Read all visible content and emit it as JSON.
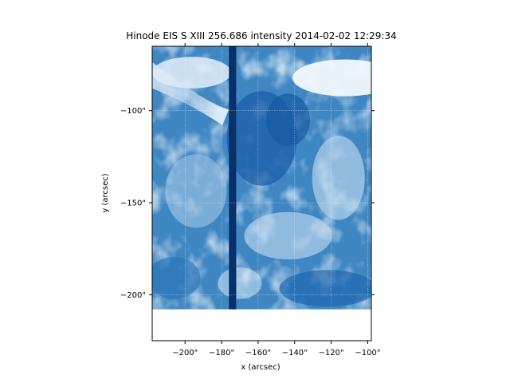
{
  "chart_data": {
    "type": "heatmap",
    "title": "Hinode EIS S XIII 256.686 intensity 2014-02-02 12:29:34",
    "xlabel": "x (arcsec)",
    "ylabel": "y (arcsec)",
    "xlim": [
      -218,
      -98
    ],
    "ylim": [
      -225,
      -65
    ],
    "image_extent": {
      "x": [
        -218,
        -98
      ],
      "y": [
        -208,
        -65
      ]
    },
    "x_ticks": [
      -200,
      -180,
      -160,
      -140,
      -120,
      -100
    ],
    "x_tick_labels": [
      "−200\"",
      "−180\"",
      "−160\"",
      "−140\"",
      "−120\"",
      "−100\""
    ],
    "y_ticks": [
      -100,
      -150,
      -200
    ],
    "y_tick_labels": [
      "−100\"",
      "−150\"",
      "−200\""
    ],
    "grid": true,
    "colormap": "Blues",
    "colors": {
      "dark": "#08306b",
      "mid": "#3f87c3",
      "light": "#deebf7",
      "background": "#ffffff"
    },
    "dark_stripe_x": [
      -176,
      -172
    ]
  }
}
